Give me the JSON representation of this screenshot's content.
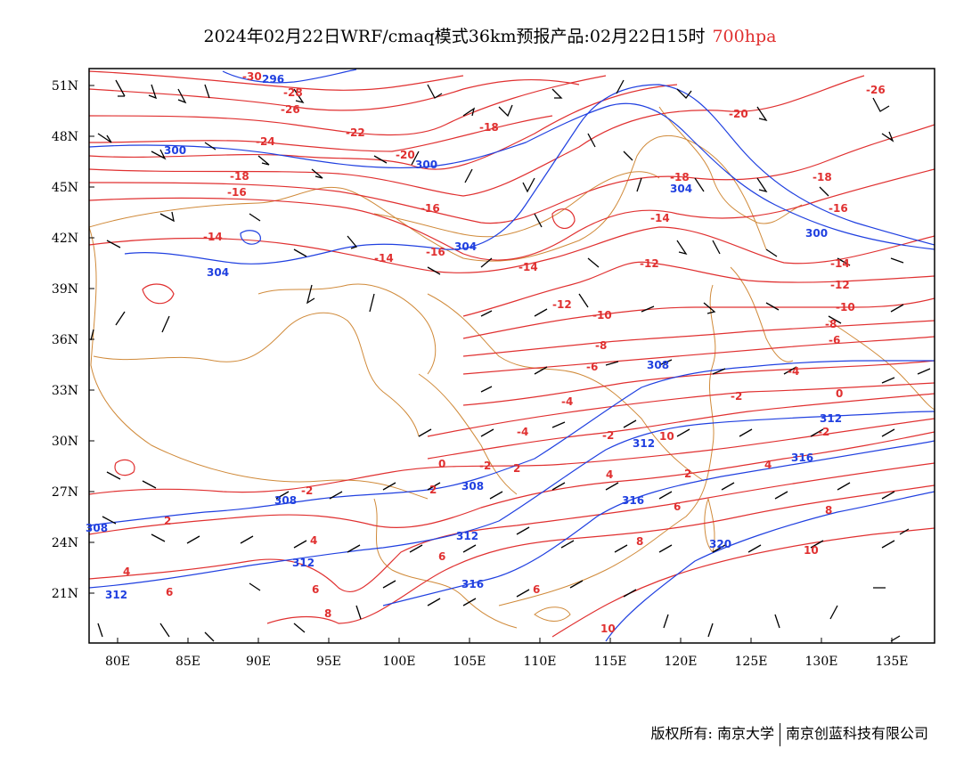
{
  "title": {
    "main": "2024年02月22日WRF/cmaq模式36km预报产品:02月22日15时",
    "level": "700hpa"
  },
  "colors": {
    "temperature": "#e03030",
    "height": "#2040e0",
    "border": "#d08a3a",
    "barb": "#000000"
  },
  "axes": {
    "x_ticks": [
      "80E",
      "85E",
      "90E",
      "95E",
      "100E",
      "105E",
      "110E",
      "115E",
      "120E",
      "125E",
      "130E",
      "135E"
    ],
    "y_ticks": [
      "51N",
      "48N",
      "45N",
      "42N",
      "39N",
      "36N",
      "33N",
      "30N",
      "27N",
      "24N",
      "21N"
    ]
  },
  "temperature_labels": [
    "-30",
    "-28",
    "-26",
    "-26",
    "-24",
    "-22",
    "-20",
    "-20",
    "-18",
    "-18",
    "-18",
    "-18",
    "-16",
    "-16",
    "-16",
    "-16",
    "-14",
    "-14",
    "-14",
    "-14",
    "-14",
    "-12",
    "-12",
    "-12",
    "-10",
    "-10",
    "-8",
    "-8",
    "-6",
    "-6",
    "-4",
    "-4",
    "-4",
    "-2",
    "-2",
    "-2",
    "-2",
    "0",
    "0",
    "-2",
    "2",
    "2",
    "2",
    "2",
    "4",
    "4",
    "4",
    "4",
    "6",
    "6",
    "6",
    "6",
    "6",
    "8",
    "8",
    "8",
    "10",
    "10",
    "10"
  ],
  "height_labels": [
    "296",
    "300",
    "300",
    "300",
    "304",
    "304",
    "304",
    "308",
    "308",
    "308",
    "308",
    "312",
    "312",
    "312",
    "312",
    "312",
    "316",
    "316",
    "316",
    "320"
  ],
  "footer": {
    "left": "版权所有: 南京大学",
    "right": "南京创蓝科技有限公司"
  }
}
